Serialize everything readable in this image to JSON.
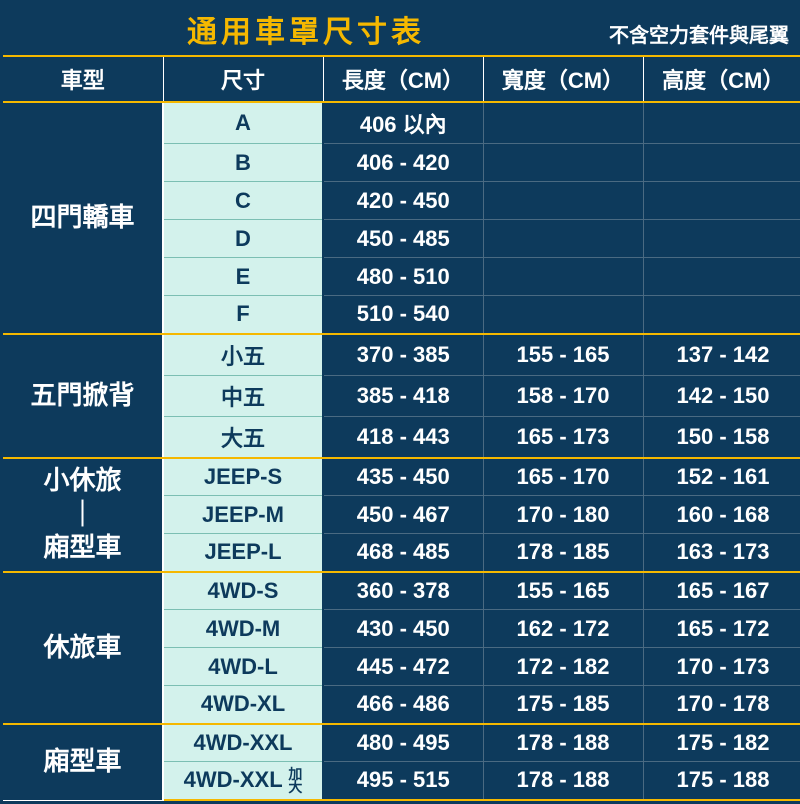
{
  "title": "通用車罩尺寸表",
  "note": "不含空力套件與尾翼",
  "headers": [
    "車型",
    "尺寸",
    "長度（CM）",
    "寬度（CM）",
    "高度（CM）"
  ],
  "groups": [
    {
      "name": "四門轎車",
      "rows": [
        {
          "size": "A",
          "l": "406 以內",
          "w": "",
          "h": ""
        },
        {
          "size": "B",
          "l": "406 - 420",
          "w": "",
          "h": ""
        },
        {
          "size": "C",
          "l": "420 - 450",
          "w": "",
          "h": ""
        },
        {
          "size": "D",
          "l": "450 - 485",
          "w": "",
          "h": ""
        },
        {
          "size": "E",
          "l": "480 - 510",
          "w": "",
          "h": ""
        },
        {
          "size": "F",
          "l": "510 - 540",
          "w": "",
          "h": ""
        }
      ]
    },
    {
      "name": "五門掀背",
      "rows": [
        {
          "size": "小五",
          "l": "370 - 385",
          "w": "155 - 165",
          "h": "137 - 142"
        },
        {
          "size": "中五",
          "l": "385 - 418",
          "w": "158 - 170",
          "h": "142 - 150"
        },
        {
          "size": "大五",
          "l": "418 - 443",
          "w": "165 - 173",
          "h": "150 - 158"
        }
      ]
    },
    {
      "name": "小休旅\n｜\n廂型車",
      "rows": [
        {
          "size": "JEEP-S",
          "l": "435 - 450",
          "w": "165 - 170",
          "h": "152 - 161"
        },
        {
          "size": "JEEP-M",
          "l": "450 - 467",
          "w": "170 - 180",
          "h": "160 - 168"
        },
        {
          "size": "JEEP-L",
          "l": "468 - 485",
          "w": "178 - 185",
          "h": "163 - 173"
        }
      ]
    },
    {
      "name": "休旅車",
      "rows": [
        {
          "size": "4WD-S",
          "l": "360 - 378",
          "w": "155 - 165",
          "h": "165 - 167"
        },
        {
          "size": "4WD-M",
          "l": "430 - 450",
          "w": "162 - 172",
          "h": "165 - 172"
        },
        {
          "size": "4WD-L",
          "l": "445 - 472",
          "w": "172 - 182",
          "h": "170 - 173"
        },
        {
          "size": "4WD-XL",
          "l": "466 - 486",
          "w": "175 - 185",
          "h": "170 - 178"
        }
      ]
    },
    {
      "name": "廂型車",
      "rows": [
        {
          "size": "4WD-XXL",
          "l": "480 - 495",
          "w": "178 - 188",
          "h": "175 - 182"
        },
        {
          "size": "4WD-XXL 加大",
          "sizeHtml": "4WD-XXL <span class='sub'>加<br>大</span>",
          "l": "495 - 515",
          "w": "178 - 188",
          "h": "175 - 188"
        }
      ]
    }
  ],
  "colors": {
    "bg_dark": "#0d3a5c",
    "accent": "#f5b800",
    "size_bg": "#d3f2ec",
    "size_border": "#7bbfb3",
    "cell_border": "#4a6a82",
    "white": "#ffffff"
  }
}
